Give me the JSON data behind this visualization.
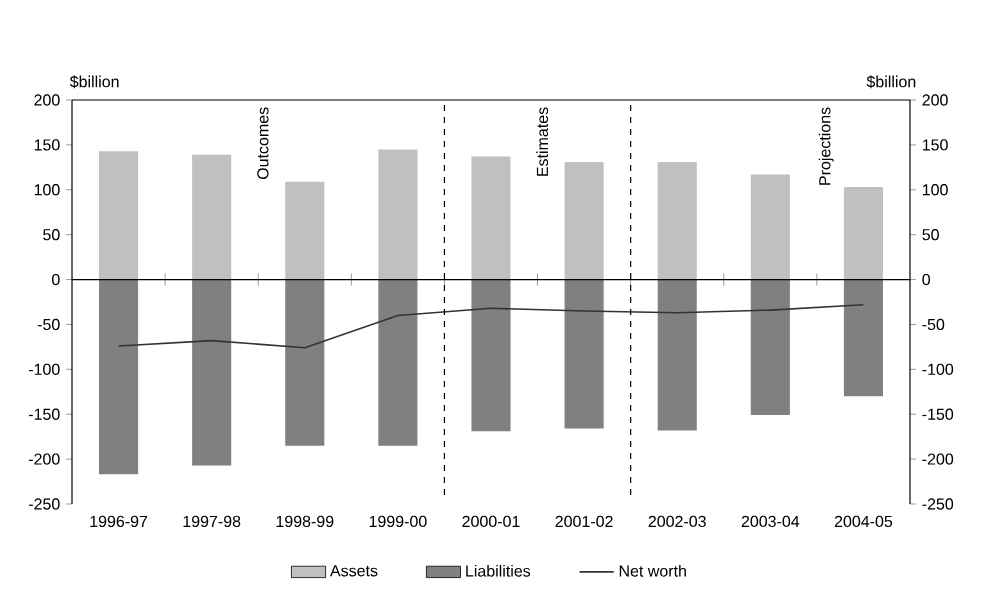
{
  "chart_data": {
    "type": "bar",
    "ylabel": "$billion",
    "y2label": "$billion",
    "categories": [
      "1996-97",
      "1997-98",
      "1998-99",
      "1999-00",
      "2000-01",
      "2001-02",
      "2002-03",
      "2003-04",
      "2004-05"
    ],
    "series": [
      {
        "name": "Assets",
        "color": "#c0c0c0",
        "values": [
          143,
          139,
          109,
          145,
          137,
          131,
          131,
          117,
          103
        ]
      },
      {
        "name": "Liabilities",
        "color": "#808080",
        "values": [
          -217,
          -207,
          -185,
          -185,
          -169,
          -166,
          -168,
          -151,
          -130
        ]
      },
      {
        "name": "Net worth",
        "type": "line",
        "color": "#333333",
        "values": [
          -74,
          -68,
          -76,
          -40,
          -32,
          -35,
          -37,
          -34,
          -28
        ]
      }
    ],
    "ylim": [
      -250,
      200
    ],
    "yticks": [
      -250,
      -200,
      -150,
      -100,
      -50,
      0,
      50,
      100,
      150,
      200
    ],
    "y2lim": [
      -250,
      200
    ],
    "y2ticks": [
      -250,
      -200,
      -150,
      -100,
      -50,
      0,
      50,
      100,
      150,
      200
    ],
    "stacked": true,
    "annotations": [
      "Outcomes",
      "Estimates",
      "Projections"
    ],
    "grid": false,
    "legend": "bottom"
  }
}
